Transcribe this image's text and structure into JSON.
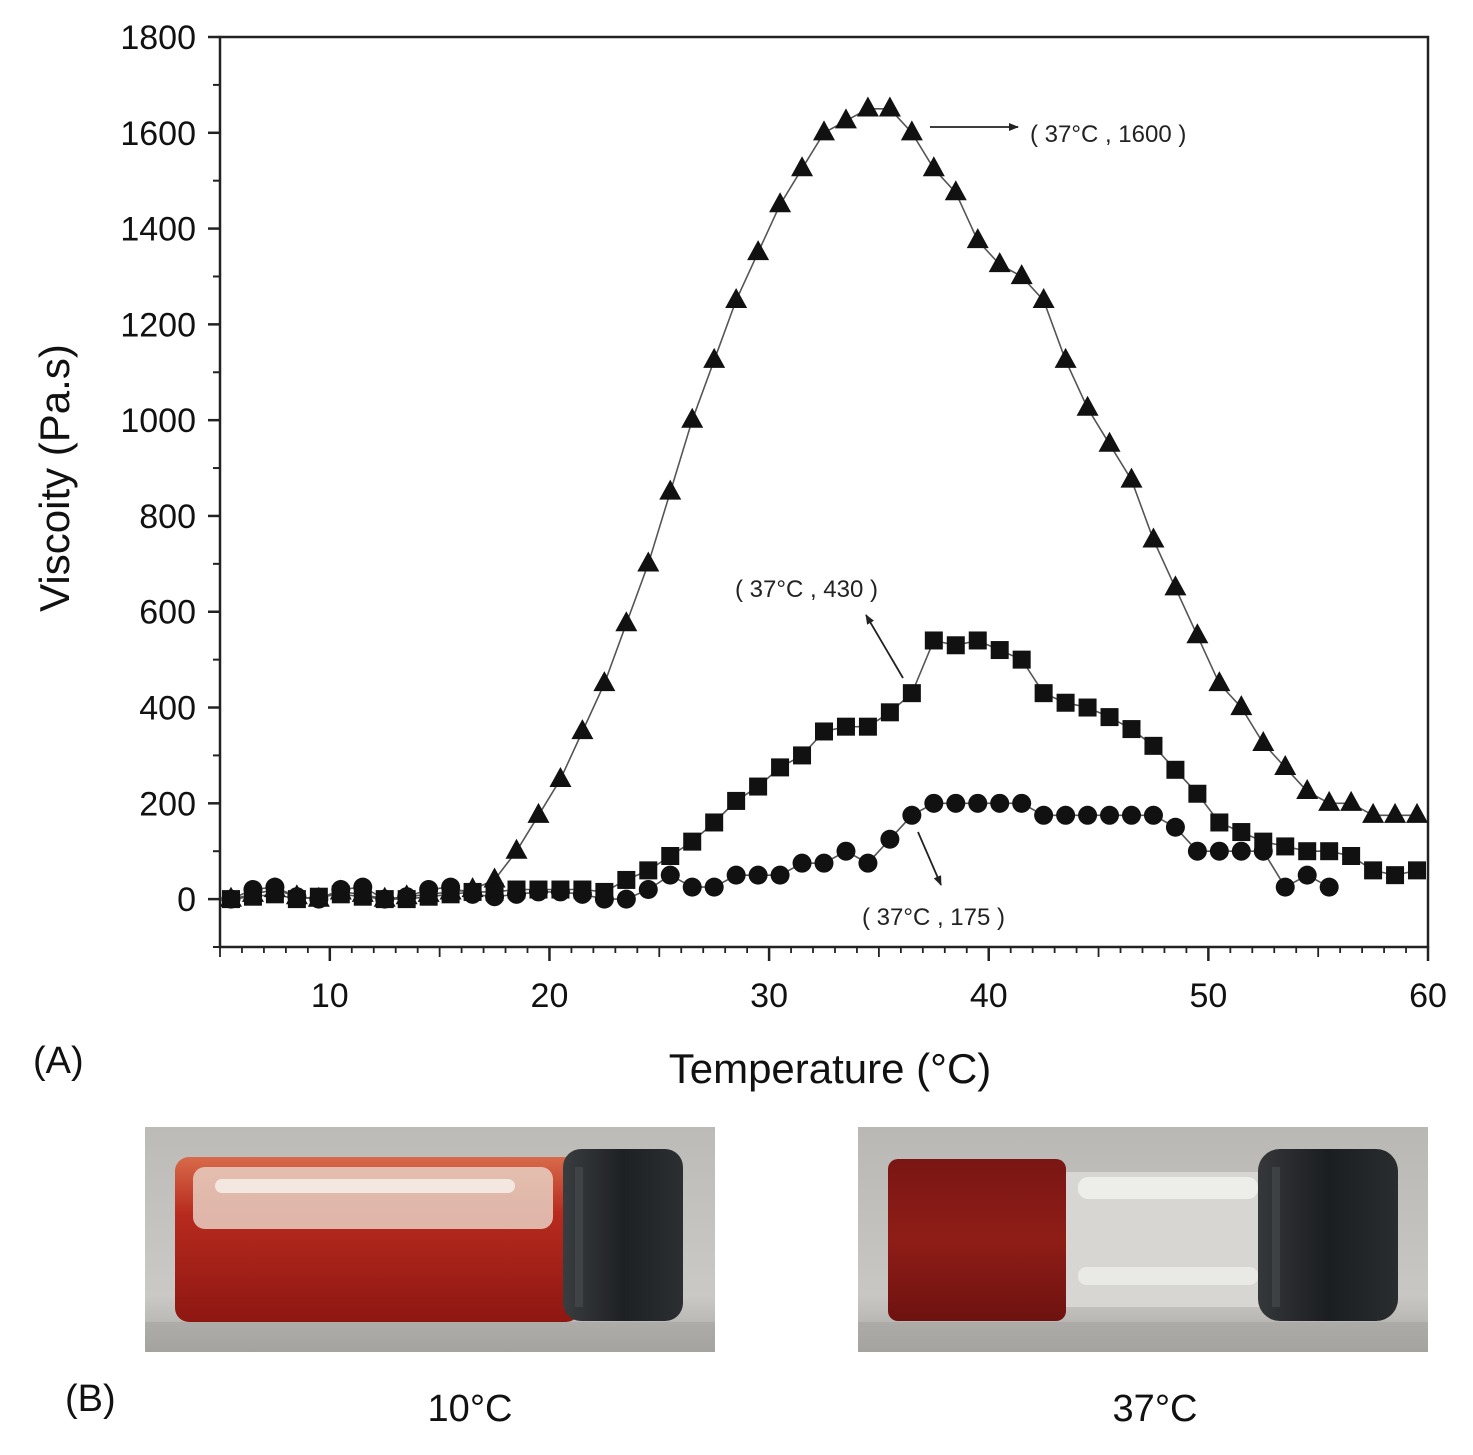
{
  "panels": {
    "a_label": "(A)",
    "b_label": "(B)"
  },
  "photos": [
    {
      "caption": "10°C"
    },
    {
      "caption": "37°C"
    }
  ],
  "colors": {
    "marker": "#111111",
    "line": "#555555",
    "axis": "#222222",
    "liquid_dark": "#8a1a16",
    "liquid": "#b0261c",
    "cap": "#202326",
    "background_photo": "#c8c6c2"
  },
  "chart_data": {
    "type": "scatter",
    "xlabel": "Temperature (°C)",
    "ylabel": "Viscoity (Pa.s)",
    "xlim": [
      5,
      60
    ],
    "ylim": [
      -100,
      1800
    ],
    "xticks": [
      10,
      20,
      30,
      40,
      50,
      60
    ],
    "yticks": [
      0,
      200,
      400,
      600,
      800,
      1000,
      1200,
      1400,
      1600,
      1800
    ],
    "grid": false,
    "legend": "none",
    "series": [
      {
        "marker": "triangle",
        "x": [
          5.5,
          6.5,
          7.5,
          8.5,
          9.5,
          10.5,
          11.5,
          12.5,
          13.5,
          14.5,
          15.5,
          16.5,
          17.5,
          18.5,
          19.5,
          20.5,
          21.5,
          22.5,
          23.5,
          24.5,
          25.5,
          26.5,
          27.5,
          28.5,
          29.5,
          30.5,
          31.5,
          32.5,
          33.5,
          34.5,
          35.5,
          36.5,
          37.5,
          38.5,
          39.5,
          40.5,
          41.5,
          42.5,
          43.5,
          44.5,
          45.5,
          46.5,
          47.5,
          48.5,
          49.5,
          50.5,
          51.5,
          52.5,
          53.5,
          54.5,
          55.5,
          56.5,
          57.5,
          58.5,
          59.5
        ],
        "y": [
          0,
          10,
          20,
          5,
          0,
          15,
          10,
          0,
          5,
          10,
          15,
          20,
          40,
          100,
          175,
          250,
          350,
          450,
          575,
          700,
          850,
          1000,
          1125,
          1250,
          1350,
          1450,
          1525,
          1600,
          1625,
          1650,
          1650,
          1600,
          1525,
          1475,
          1375,
          1325,
          1300,
          1250,
          1125,
          1025,
          950,
          875,
          750,
          650,
          550,
          450,
          400,
          325,
          275,
          225,
          200,
          200,
          175,
          175,
          175
        ]
      },
      {
        "marker": "square",
        "x": [
          5.5,
          6.5,
          7.5,
          8.5,
          9.5,
          10.5,
          11.5,
          12.5,
          13.5,
          14.5,
          15.5,
          16.5,
          17.5,
          18.5,
          19.5,
          20.5,
          21.5,
          22.5,
          23.5,
          24.5,
          25.5,
          26.5,
          27.5,
          28.5,
          29.5,
          30.5,
          31.5,
          32.5,
          33.5,
          34.5,
          35.5,
          36.5,
          37.5,
          38.5,
          39.5,
          40.5,
          41.5,
          42.5,
          43.5,
          44.5,
          45.5,
          46.5,
          47.5,
          48.5,
          49.5,
          50.5,
          51.5,
          52.5,
          53.5,
          54.5,
          55.5,
          56.5,
          57.5,
          58.5,
          59.5
        ],
        "y": [
          0,
          5,
          10,
          0,
          5,
          10,
          5,
          0,
          0,
          5,
          10,
          15,
          15,
          20,
          20,
          20,
          20,
          15,
          40,
          60,
          90,
          120,
          160,
          205,
          235,
          275,
          300,
          350,
          360,
          360,
          390,
          430,
          540,
          530,
          540,
          520,
          500,
          430,
          410,
          400,
          380,
          355,
          320,
          270,
          220,
          160,
          140,
          120,
          110,
          100,
          100,
          90,
          60,
          50,
          60
        ]
      },
      {
        "marker": "circle",
        "x": [
          5.5,
          6.5,
          7.5,
          8.5,
          9.5,
          10.5,
          11.5,
          12.5,
          13.5,
          14.5,
          15.5,
          16.5,
          17.5,
          18.5,
          19.5,
          20.5,
          21.5,
          22.5,
          23.5,
          24.5,
          25.5,
          26.5,
          27.5,
          28.5,
          29.5,
          30.5,
          31.5,
          32.5,
          33.5,
          34.5,
          35.5,
          36.5,
          37.5,
          38.5,
          39.5,
          40.5,
          41.5,
          42.5,
          43.5,
          44.5,
          45.5,
          46.5,
          47.5,
          48.5,
          49.5,
          50.5,
          51.5,
          52.5,
          53.5,
          54.5,
          55.5
        ],
        "y": [
          0,
          20,
          25,
          5,
          0,
          20,
          25,
          0,
          5,
          20,
          25,
          10,
          5,
          10,
          15,
          15,
          10,
          0,
          0,
          20,
          50,
          25,
          25,
          50,
          50,
          50,
          75,
          75,
          100,
          75,
          125,
          175,
          200,
          200,
          200,
          200,
          200,
          175,
          175,
          175,
          175,
          175,
          175,
          150,
          100,
          100,
          100,
          100,
          25,
          50,
          25
        ]
      }
    ],
    "annotations": [
      {
        "text": "( 37°C , 1600 )",
        "x": 37,
        "y": 1600
      },
      {
        "text": "( 37°C , 430 )",
        "x": 37,
        "y": 430
      },
      {
        "text": "( 37°C , 175 )",
        "x": 37,
        "y": 175
      }
    ]
  }
}
